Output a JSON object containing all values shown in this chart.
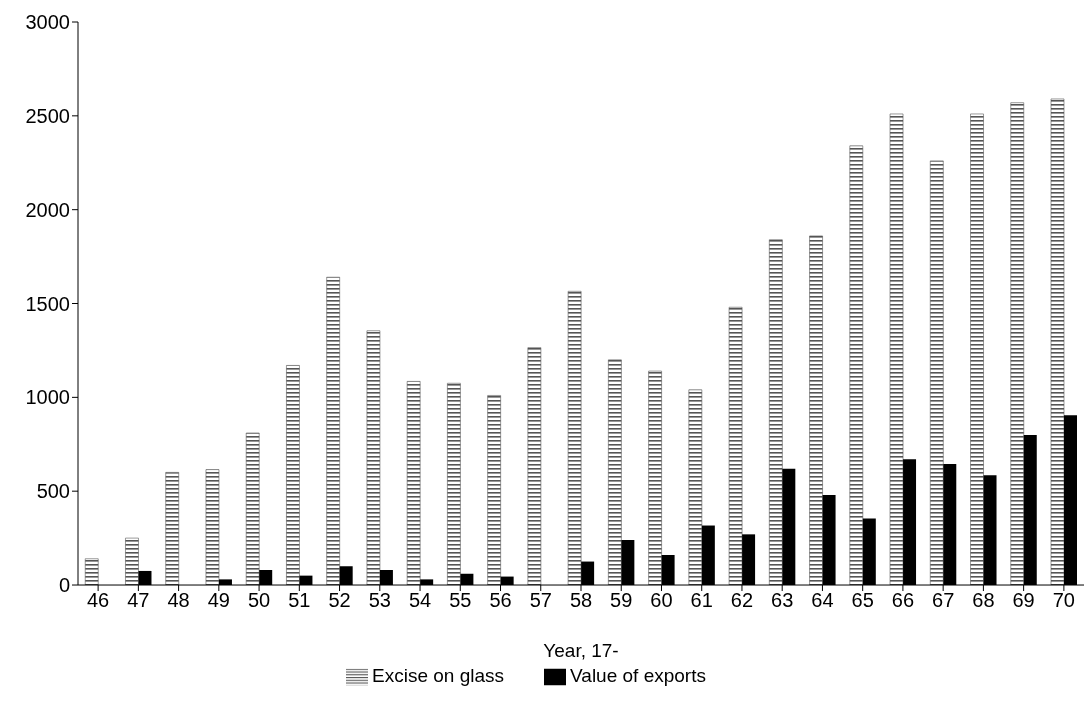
{
  "chart_data": {
    "type": "bar",
    "xlabel": "Year, 17-",
    "categories": [
      "46",
      "47",
      "48",
      "49",
      "50",
      "51",
      "52",
      "53",
      "54",
      "55",
      "56",
      "57",
      "58",
      "59",
      "60",
      "61",
      "62",
      "63",
      "64",
      "65",
      "66",
      "67",
      "68",
      "69",
      "70"
    ],
    "series": [
      {
        "name": "Excise on glass",
        "color": "#555555",
        "values": [
          140,
          250,
          600,
          615,
          810,
          1170,
          1640,
          1355,
          1085,
          1075,
          1010,
          1265,
          1565,
          1200,
          1140,
          1040,
          1480,
          1840,
          1860,
          2340,
          2510,
          2260,
          2510,
          2570,
          2590
        ]
      },
      {
        "name": "Value of exports",
        "color": "#000000",
        "values": [
          0,
          75,
          0,
          30,
          80,
          50,
          100,
          80,
          30,
          60,
          45,
          0,
          125,
          240,
          160,
          317,
          270,
          620,
          480,
          355,
          670,
          645,
          585,
          800,
          905
        ]
      }
    ],
    "ylim": [
      0,
      3000
    ],
    "yticks": [
      0,
      500,
      1000,
      1500,
      2000,
      2500,
      3000
    ],
    "grid": false,
    "legend": "bottom"
  }
}
